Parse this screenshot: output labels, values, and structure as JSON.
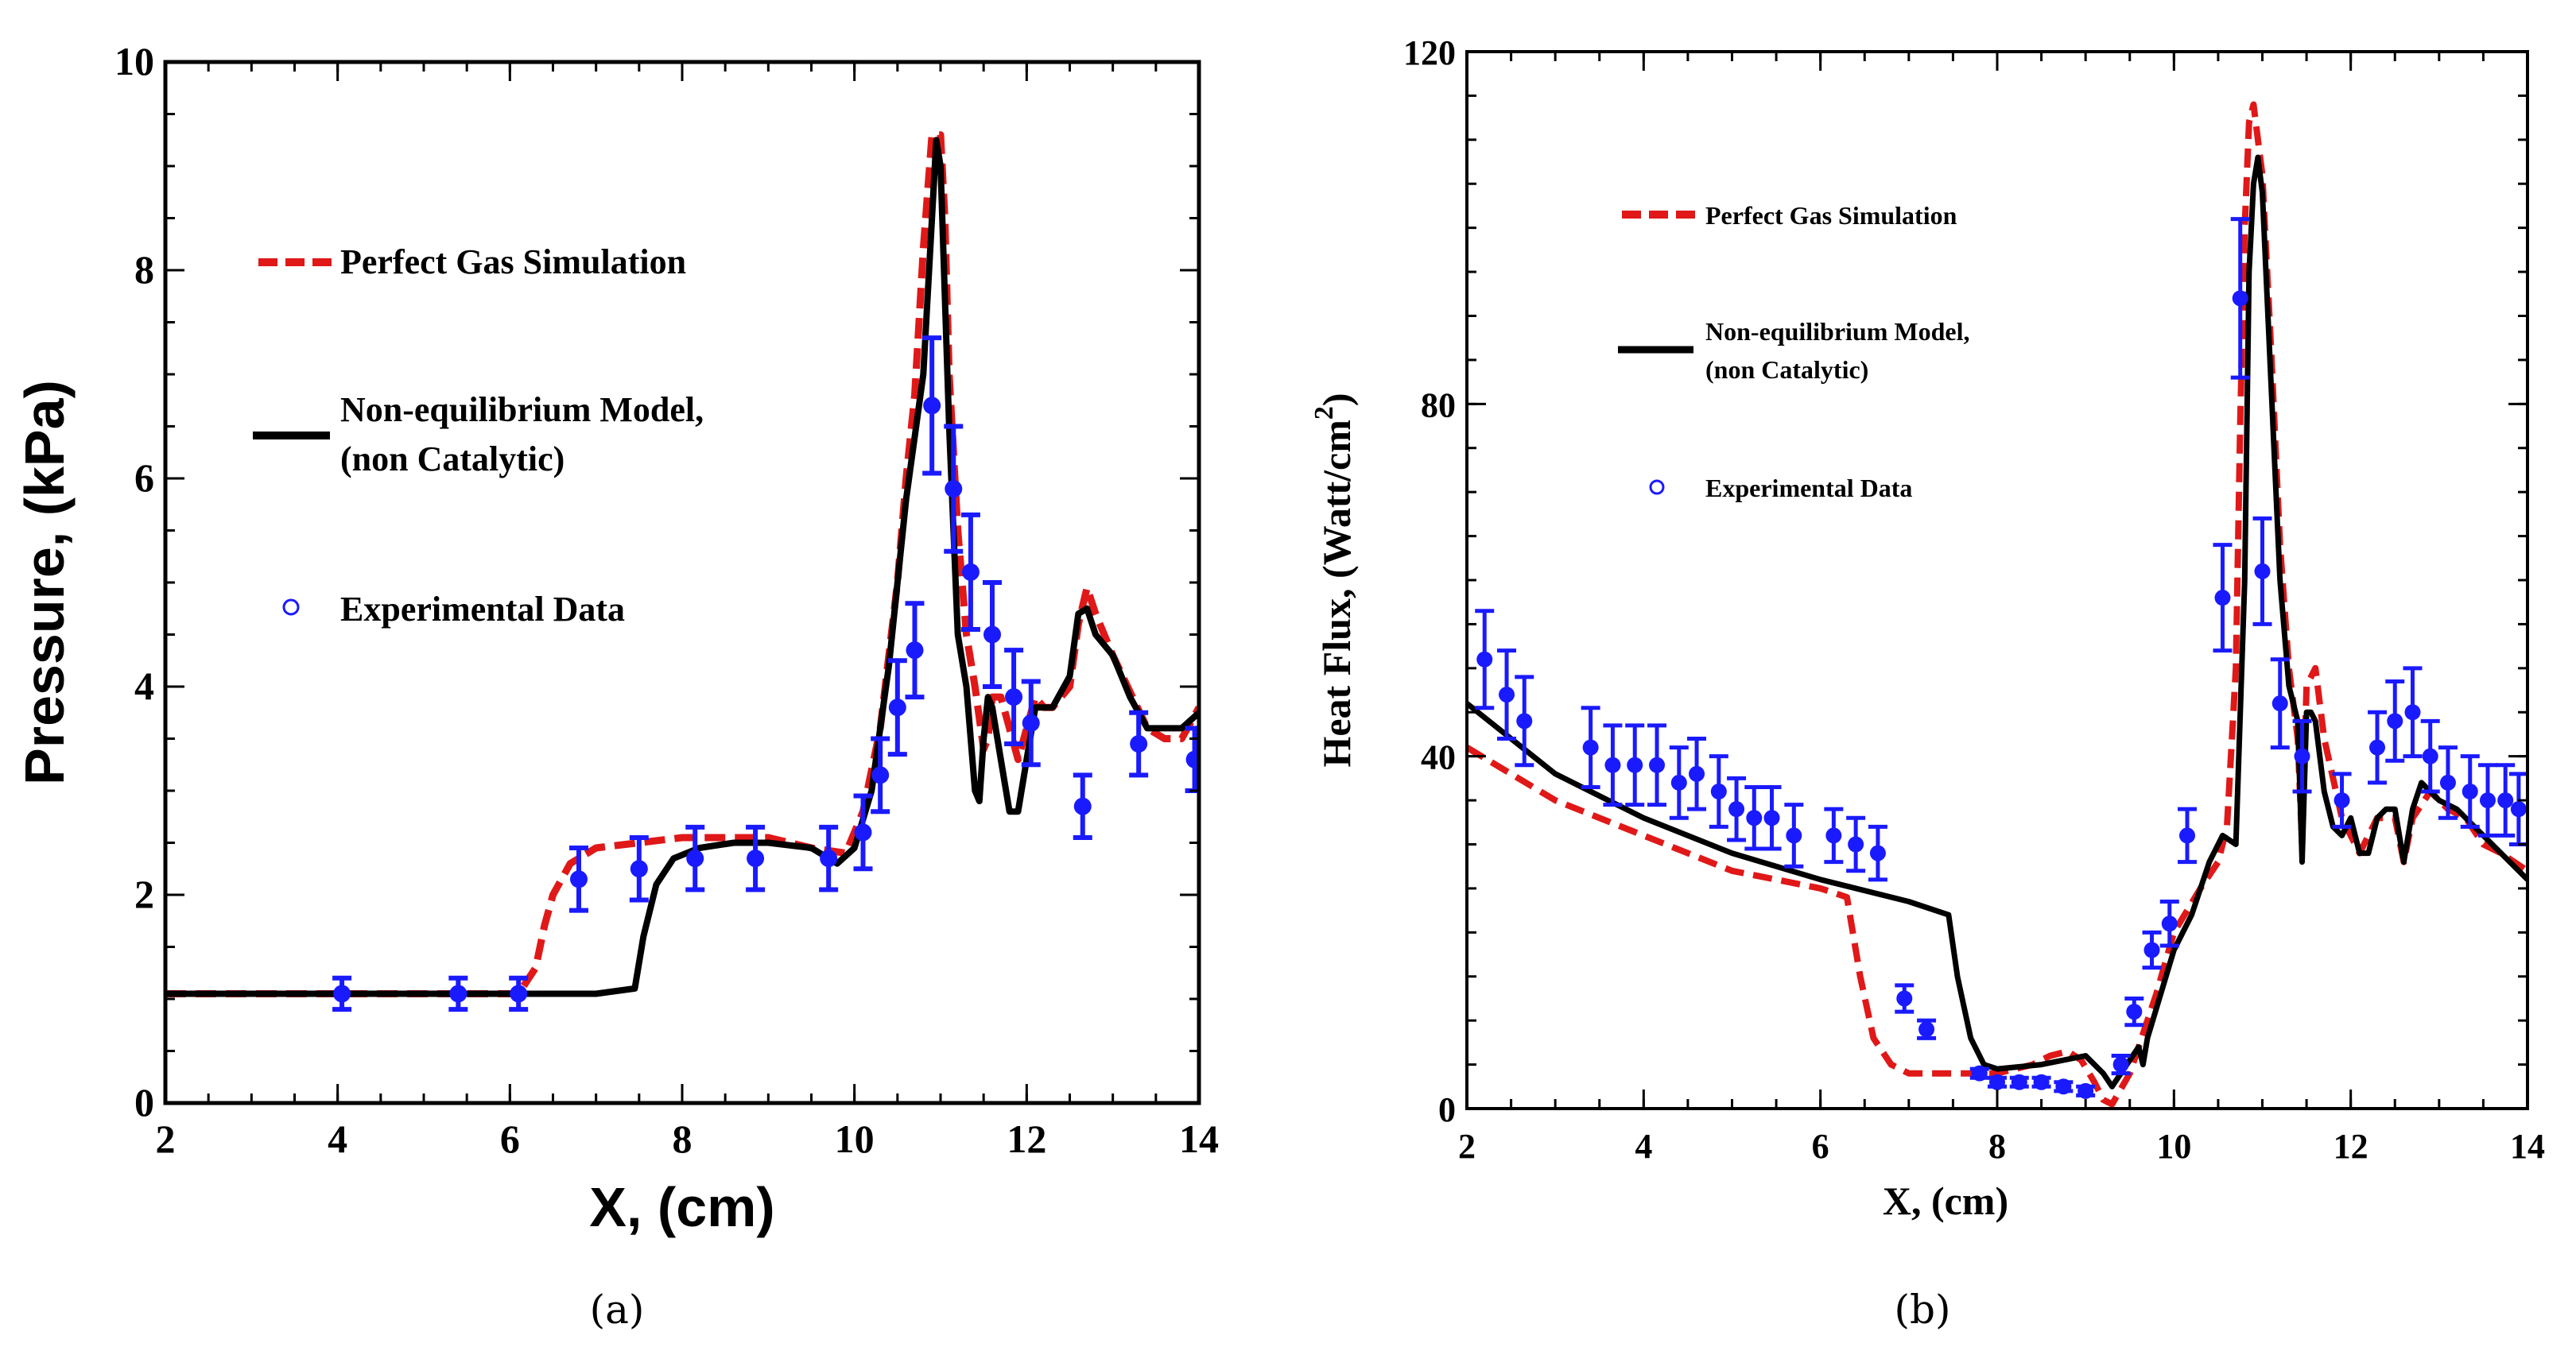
{
  "colors": {
    "perfect_gas": "#e01818",
    "non_equilibrium": "#000000",
    "experimental": "#1a1aff"
  },
  "chart_data": [
    {
      "type": "line",
      "panel_caption": "(a)",
      "xlabel": "X, (cm)",
      "ylabel": "Pressure, (kPa)",
      "xlim": [
        2,
        14
      ],
      "ylim": [
        0,
        10
      ],
      "xticks": [
        2,
        4,
        6,
        8,
        10,
        12,
        14
      ],
      "yticks": [
        0,
        2,
        4,
        6,
        8,
        10
      ],
      "legend": {
        "placement": "upper-left",
        "entries": [
          "Perfect Gas Simulation",
          "Non-equilibrium Model,",
          "(non Catalytic)",
          "Experimental Data"
        ]
      },
      "series": [
        {
          "name": "Perfect Gas Simulation",
          "style": "dashed",
          "color": "#e01818",
          "x": [
            2,
            4,
            5.5,
            6.1,
            6.3,
            6.4,
            6.5,
            6.7,
            7.0,
            7.5,
            8.0,
            8.5,
            9.0,
            9.5,
            9.9,
            10.1,
            10.3,
            10.5,
            10.6,
            10.7,
            10.8,
            10.9,
            11.0,
            11.05,
            11.1,
            11.2,
            11.3,
            11.4,
            11.5,
            11.55,
            11.6,
            11.7,
            11.8,
            11.9,
            12.0,
            12.1,
            12.2,
            12.3,
            12.5,
            12.6,
            12.7,
            12.8,
            13.0,
            13.2,
            13.4,
            13.6,
            13.8,
            14.0
          ],
          "y": [
            1.05,
            1.05,
            1.05,
            1.05,
            1.3,
            1.7,
            2.0,
            2.3,
            2.45,
            2.5,
            2.55,
            2.55,
            2.55,
            2.45,
            2.4,
            2.8,
            3.6,
            5.0,
            6.0,
            6.8,
            8.2,
            9.3,
            9.3,
            8.5,
            7.0,
            5.5,
            4.5,
            4.0,
            3.4,
            3.5,
            3.9,
            3.9,
            3.6,
            3.3,
            3.6,
            3.9,
            3.8,
            3.8,
            4.0,
            4.6,
            4.95,
            4.7,
            4.3,
            3.95,
            3.6,
            3.5,
            3.5,
            3.8
          ]
        },
        {
          "name": "Non-equilibrium Model, (non Catalytic)",
          "style": "solid",
          "color": "#000000",
          "x": [
            2,
            5,
            6,
            7,
            7.45,
            7.55,
            7.7,
            7.9,
            8.2,
            8.6,
            9.0,
            9.5,
            9.8,
            10.0,
            10.2,
            10.4,
            10.6,
            10.8,
            10.9,
            10.95,
            11.0,
            11.1,
            11.2,
            11.3,
            11.4,
            11.45,
            11.5,
            11.55,
            11.6,
            11.7,
            11.8,
            11.9,
            12.0,
            12.1,
            12.2,
            12.3,
            12.5,
            12.6,
            12.7,
            12.8,
            13.0,
            13.2,
            13.4,
            13.6,
            13.8,
            14.0
          ],
          "y": [
            1.05,
            1.05,
            1.05,
            1.05,
            1.1,
            1.6,
            2.1,
            2.35,
            2.45,
            2.5,
            2.5,
            2.45,
            2.3,
            2.45,
            3.0,
            4.2,
            5.8,
            7.0,
            8.5,
            9.25,
            9.0,
            6.5,
            4.5,
            4.0,
            3.0,
            2.9,
            3.5,
            3.9,
            3.8,
            3.3,
            2.8,
            2.8,
            3.3,
            3.8,
            3.8,
            3.8,
            4.1,
            4.7,
            4.75,
            4.5,
            4.3,
            3.9,
            3.6,
            3.6,
            3.6,
            3.75
          ]
        },
        {
          "name": "Experimental Data",
          "style": "markers-errorbars",
          "color": "#1a1aff",
          "x": [
            4.05,
            5.4,
            6.1,
            6.8,
            7.5,
            8.15,
            8.85,
            9.7,
            10.1,
            10.3,
            10.5,
            10.7,
            10.9,
            11.15,
            11.35,
            11.6,
            11.85,
            12.05,
            12.65,
            13.3,
            13.95
          ],
          "y": [
            1.05,
            1.05,
            1.05,
            2.15,
            2.25,
            2.35,
            2.35,
            2.35,
            2.6,
            3.15,
            3.8,
            4.35,
            6.7,
            5.9,
            5.1,
            4.5,
            3.9,
            3.65,
            2.85,
            3.45,
            3.3
          ],
          "err": [
            0.15,
            0.15,
            0.15,
            0.3,
            0.3,
            0.3,
            0.3,
            0.3,
            0.35,
            0.35,
            0.45,
            0.45,
            0.65,
            0.6,
            0.55,
            0.5,
            0.45,
            0.4,
            0.3,
            0.3,
            0.3
          ]
        }
      ]
    },
    {
      "type": "line",
      "panel_caption": "(b)",
      "xlabel": "X, (cm)",
      "ylabel": "Heat Flux, (Watt/cm",
      "ylabel_sup": "2",
      "ylabel_end": ")",
      "xlim": [
        2,
        14
      ],
      "ylim": [
        0,
        120
      ],
      "xticks": [
        2,
        4,
        6,
        8,
        10,
        12,
        14
      ],
      "yticks": [
        0,
        40,
        80,
        120
      ],
      "legend": {
        "placement": "upper-left",
        "entries": [
          "Perfect Gas Simulation",
          "Non-equilibrium Model,",
          "(non Catalytic)",
          "Experimental Data"
        ]
      },
      "series": [
        {
          "name": "Perfect Gas Simulation",
          "style": "dashed",
          "color": "#e01818",
          "x": [
            2,
            3,
            4,
            5,
            6,
            6.3,
            6.45,
            6.6,
            6.8,
            7.0,
            7.5,
            8.0,
            8.4,
            8.6,
            8.8,
            8.95,
            9.1,
            9.2,
            9.3,
            9.5,
            9.8,
            10.0,
            10.3,
            10.5,
            10.6,
            10.7,
            10.75,
            10.8,
            10.85,
            10.9,
            11.0,
            11.1,
            11.2,
            11.3,
            11.4,
            11.45,
            11.5,
            11.6,
            11.7,
            11.9,
            12.1,
            12.3,
            12.5,
            12.6,
            12.7,
            12.9,
            13.1,
            13.3,
            13.5,
            13.7,
            14.0
          ],
          "y": [
            41,
            35,
            31,
            27,
            25,
            24,
            15,
            8,
            5,
            4,
            4,
            4,
            5,
            6,
            6.5,
            5.5,
            3,
            1,
            0.5,
            4,
            13,
            20,
            25,
            28,
            32,
            50,
            78,
            100,
            112,
            114,
            106,
            86,
            64,
            50,
            42,
            30,
            48,
            50,
            42,
            33,
            29,
            33,
            33,
            28,
            33,
            36,
            34,
            33,
            30,
            29,
            27
          ]
        },
        {
          "name": "Non-equilibrium Model, (non Catalytic)",
          "style": "solid",
          "color": "#000000",
          "x": [
            2,
            3,
            4,
            5,
            6,
            7,
            7.45,
            7.55,
            7.7,
            7.85,
            8.0,
            8.5,
            9.0,
            9.2,
            9.3,
            9.4,
            9.6,
            9.65,
            9.7,
            10.0,
            10.2,
            10.4,
            10.55,
            10.7,
            10.8,
            10.85,
            10.9,
            10.95,
            11.0,
            11.1,
            11.2,
            11.3,
            11.4,
            11.45,
            11.5,
            11.55,
            11.6,
            11.7,
            11.8,
            11.9,
            12.0,
            12.1,
            12.2,
            12.3,
            12.4,
            12.5,
            12.6,
            12.7,
            12.8,
            13.0,
            13.2,
            13.4,
            13.6,
            13.8,
            14.0
          ],
          "y": [
            46,
            38,
            33,
            29,
            26,
            23.5,
            22,
            15,
            8,
            5,
            4.5,
            5,
            6,
            4,
            2.5,
            4,
            7,
            5,
            8,
            18,
            22,
            28,
            31,
            30,
            60,
            95,
            105,
            108,
            104,
            82,
            60,
            48,
            44,
            28,
            45,
            45,
            44,
            36,
            32,
            31,
            33,
            29,
            29,
            33,
            34,
            34,
            28,
            34,
            37,
            35,
            34,
            32,
            30,
            28,
            26
          ]
        },
        {
          "name": "Experimental Data",
          "style": "markers-errorbars",
          "color": "#1a1aff",
          "x": [
            2.2,
            2.45,
            2.65,
            3.4,
            3.65,
            3.9,
            4.15,
            4.4,
            4.6,
            4.85,
            5.05,
            5.25,
            5.45,
            5.7,
            6.15,
            6.4,
            6.65,
            6.95,
            7.2,
            7.8,
            8.0,
            8.25,
            8.5,
            8.75,
            9.0,
            9.4,
            9.55,
            9.75,
            9.95,
            10.15,
            10.55,
            10.75,
            11.0,
            11.2,
            11.45,
            11.9,
            12.3,
            12.5,
            12.7,
            12.9,
            13.1,
            13.35,
            13.55,
            13.75,
            13.9
          ],
          "y": [
            51,
            47,
            44,
            41,
            39,
            39,
            39,
            37,
            38,
            36,
            34,
            33,
            33,
            31,
            31,
            30,
            29,
            12.5,
            9,
            4,
            3,
            3,
            3,
            2.5,
            2,
            5,
            11,
            18,
            21,
            31,
            58,
            92,
            61,
            46,
            40,
            35,
            41,
            44,
            45,
            40,
            37,
            36,
            35,
            35,
            34
          ],
          "err": [
            5.5,
            5,
            5,
            4.5,
            4.5,
            4.5,
            4.5,
            4,
            4,
            4,
            3.5,
            3.5,
            3.5,
            3.5,
            3,
            3,
            3,
            1.5,
            1,
            0.5,
            0.5,
            0.5,
            0.5,
            0.5,
            0.5,
            1,
            1.5,
            2,
            2.5,
            3,
            6,
            9,
            6,
            5,
            4,
            3,
            4,
            4.5,
            5,
            4,
            4,
            4,
            4,
            4,
            4
          ]
        }
      ]
    }
  ]
}
